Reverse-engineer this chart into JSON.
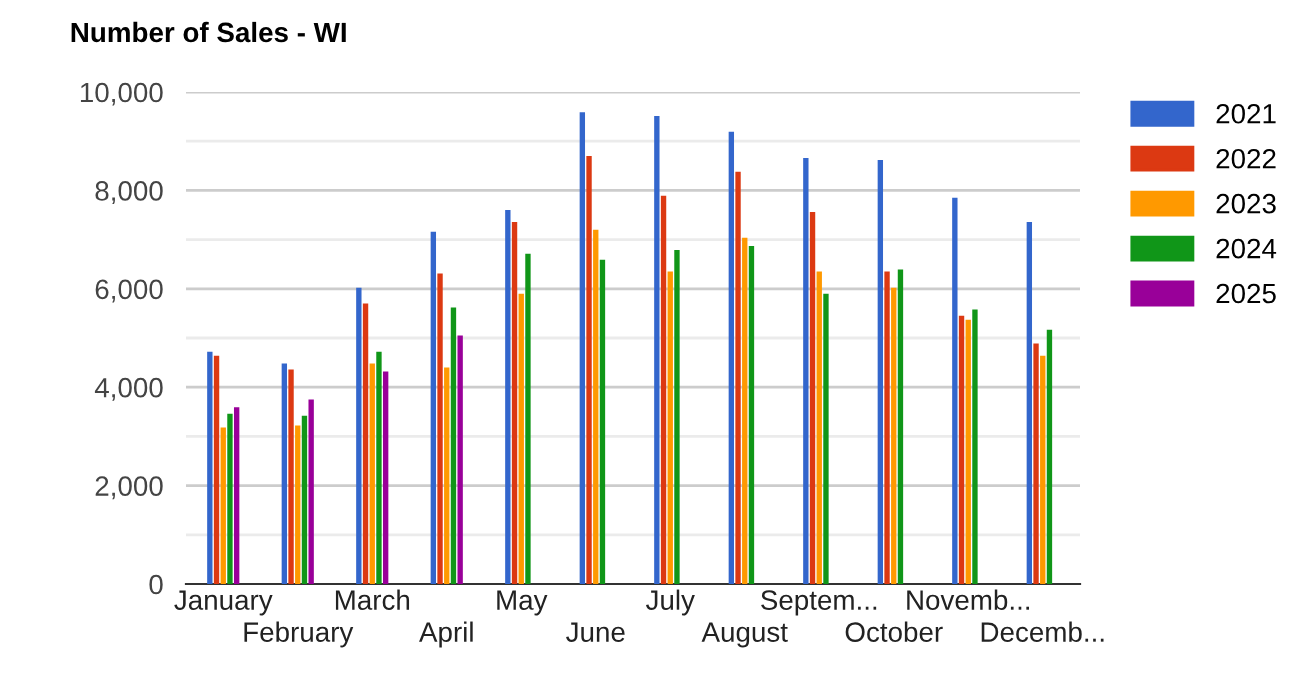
{
  "chart_data": {
    "type": "bar",
    "title": "Number of Sales - WI",
    "categories": [
      "January",
      "February",
      "March",
      "April",
      "May",
      "June",
      "July",
      "August",
      "Septem...",
      "October",
      "Novemb...",
      "Decemb..."
    ],
    "series": [
      {
        "name": "2021",
        "color": "#3366cc",
        "values": [
          4720,
          4480,
          6020,
          7160,
          7600,
          9590,
          9510,
          9190,
          8660,
          8620,
          7850,
          7360
        ]
      },
      {
        "name": "2022",
        "color": "#dc3912",
        "values": [
          4640,
          4360,
          5700,
          6310,
          7360,
          8700,
          7890,
          8380,
          7560,
          6350,
          5450,
          4890
        ]
      },
      {
        "name": "2023",
        "color": "#ff9900",
        "values": [
          3180,
          3220,
          4480,
          4400,
          5900,
          7200,
          6350,
          7040,
          6350,
          6020,
          5370,
          4640
        ]
      },
      {
        "name": "2024",
        "color": "#109618",
        "values": [
          3460,
          3420,
          4720,
          5620,
          6710,
          6590,
          6790,
          6870,
          5900,
          6390,
          5580,
          5170
        ]
      },
      {
        "name": "2025",
        "color": "#990099",
        "values": [
          3590,
          3750,
          4320,
          5050,
          null,
          null,
          null,
          null,
          null,
          null,
          null,
          null
        ]
      }
    ],
    "ylim": [
      0,
      10000
    ],
    "yticks": [
      0,
      {
        "value": 1000,
        "label": null
      },
      {
        "value": 2000,
        "label": "2,000"
      },
      {
        "value": 3000,
        "label": null
      },
      {
        "value": 4000,
        "label": "4,000"
      },
      {
        "value": 5000,
        "label": null
      },
      {
        "value": 6000,
        "label": "6,000"
      },
      {
        "value": 7000,
        "label": null
      },
      {
        "value": 8000,
        "label": "8,000"
      },
      {
        "value": 9000,
        "label": null
      },
      {
        "value": 10000,
        "label": "10,000"
      }
    ],
    "grid": "y",
    "legend": "top right"
  }
}
